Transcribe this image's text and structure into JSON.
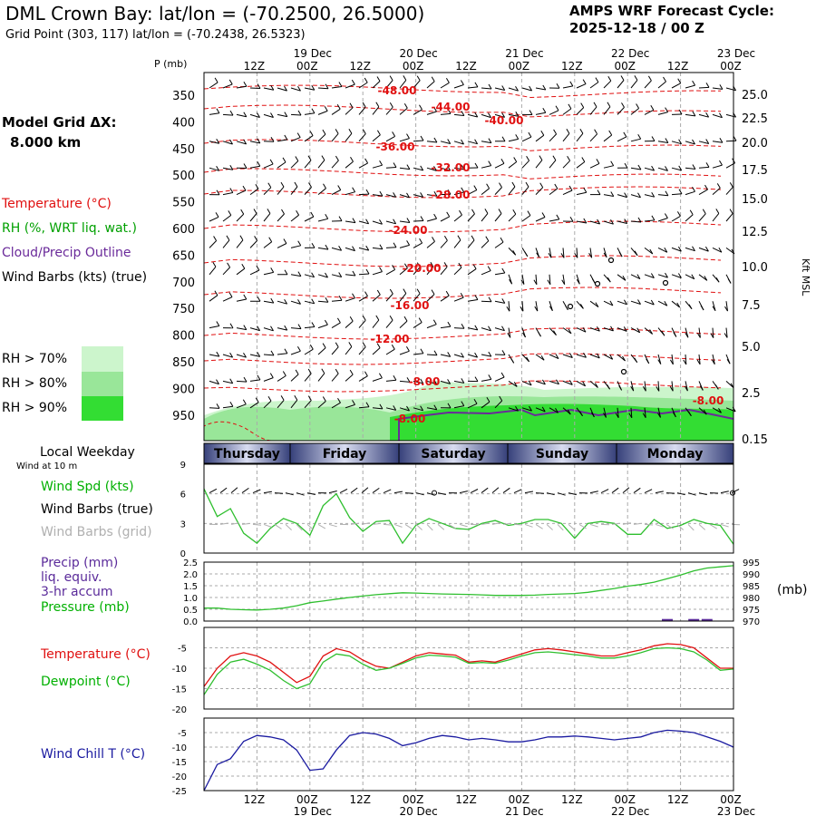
{
  "header": {
    "title": "DML Crown Bay:  lat/lon = (-70.2500, 26.5000)",
    "subtitle": "Grid Point (303, 117) lat/lon = (-70.2438, 26.5323)",
    "cycle_label": "AMPS WRF Forecast Cycle:",
    "cycle_value": "2025-12-18 / 00  Z"
  },
  "left_legend": {
    "model_grid_label": "Model Grid ΔX:",
    "model_grid_value": "8.000 km",
    "temperature": "Temperature (°C)",
    "rh": "RH (%, WRT liq. wat.)",
    "cloud": "Cloud/Precip Outline",
    "wind": "Wind Barbs (kts) (true)",
    "rh70": "RH > 70%",
    "rh80": "RH > 80%",
    "rh90": "RH > 90%",
    "local_weekday": "Local Weekday",
    "wind_at_10m": "Wind at 10 m",
    "wind_spd": "Wind Spd (kts)",
    "wind_barbs_true": "Wind Barbs (true)",
    "wind_barbs_grid": "Wind Barbs (grid)",
    "precip": "Precip (mm)",
    "liq_equiv": "liq. equiv.",
    "accum": "3-hr accum",
    "pressure": "Pressure (mb)",
    "pressure_unit": "(mb)",
    "temp2": "Temperature (°C)",
    "dewpoint": "Dewpoint (°C)",
    "windchill": "Wind Chill T (°C)"
  },
  "colors": {
    "temp": "#e01010",
    "rh": "#00b000",
    "cloud": "#6a2a9a",
    "green70": "#ccf5cc",
    "green80": "#99e699",
    "green90": "#33dd33",
    "windchill": "#1a1aa0",
    "precip": "#5a2a9a",
    "grid": "#aaaaaa",
    "weekday_band": "#36407a"
  },
  "chart_data": [
    {
      "type": "time-height cross-section",
      "time_ticks": [
        "12Z",
        "00Z",
        "12Z",
        "00Z",
        "12Z",
        "00Z",
        "12Z",
        "00Z",
        "12Z",
        "00Z"
      ],
      "date_labels": [
        "19 Dec",
        "20 Dec",
        "21 Dec",
        "22 Dec",
        "23 Dec"
      ],
      "p_axis_title": "P (mb)",
      "pressure_levels": [
        "350",
        "400",
        "450",
        "500",
        "550",
        "600",
        "650",
        "700",
        "750",
        "800",
        "850",
        "900",
        "950"
      ],
      "height_axis_title": "Kft MSL",
      "height_labels": [
        "25.0",
        "22.5",
        "20.0",
        "17.5",
        "15.0",
        "12.5",
        "10.0",
        "7.5",
        "5.0",
        "2.5",
        "0.15"
      ],
      "isotherm_labels": [
        "-48.00",
        "-44.00",
        "-40.00",
        "-36.00",
        "-32.00",
        "-28.00",
        "-24.00",
        "-20.00",
        "-16.00",
        "-12.00",
        "-8.00",
        "-8.00",
        "-8.00"
      ],
      "weekdays": [
        "Thursday",
        "Friday",
        "Saturday",
        "Sunday",
        "Monday"
      ]
    },
    {
      "type": "line",
      "title": "Wind Spd (kts)",
      "y_ticks": [
        "9",
        "6",
        "3",
        "0"
      ],
      "ylim": [
        0,
        9
      ],
      "x_hours": [
        0,
        3,
        6,
        9,
        12,
        15,
        18,
        21,
        24,
        27,
        30,
        33,
        36,
        39,
        42,
        45,
        48,
        51,
        54,
        57,
        60,
        63,
        66,
        69,
        72,
        75,
        78,
        81,
        84,
        87,
        90,
        93,
        96,
        99,
        102,
        105,
        108,
        111,
        114,
        117,
        120
      ],
      "wind_speed_kts": [
        6.5,
        3.7,
        4.5,
        2.0,
        1.0,
        2.5,
        3.5,
        3.0,
        1.8,
        4.8,
        6.0,
        3.6,
        2.2,
        3.2,
        3.3,
        1.0,
        2.8,
        3.5,
        3.0,
        2.5,
        2.4,
        3.0,
        3.3,
        2.8,
        3.0,
        3.4,
        3.4,
        3.0,
        1.5,
        3.0,
        3.2,
        3.0,
        1.9,
        1.9,
        3.4,
        2.5,
        2.8,
        3.4,
        3.0,
        2.8,
        0.9
      ]
    },
    {
      "type": "line",
      "title": "Precip / Pressure",
      "precip_ticks": [
        "2.5",
        "2.0",
        "1.5",
        "1.0",
        "0.5",
        "0.0"
      ],
      "pressure_ticks": [
        "995",
        "990",
        "985",
        "980",
        "975",
        "970"
      ],
      "precip_ylim": [
        0,
        2.5
      ],
      "pressure_ylim": [
        970,
        995
      ],
      "precip_mm": [
        0,
        0,
        0,
        0,
        0,
        0,
        0,
        0,
        0,
        0,
        0,
        0,
        0,
        0,
        0,
        0,
        0,
        0,
        0,
        0,
        0,
        0,
        0,
        0,
        0,
        0,
        0,
        0,
        0,
        0,
        0,
        0,
        0,
        0,
        0,
        0.05,
        0,
        0.05,
        0.05,
        0,
        0
      ],
      "pressure_mb": [
        975.5,
        975.5,
        975.0,
        974.8,
        974.7,
        975.0,
        975.5,
        976.5,
        977.8,
        978.5,
        979.3,
        980.0,
        980.6,
        981.2,
        981.6,
        982.0,
        981.9,
        981.7,
        981.5,
        981.4,
        981.3,
        981.1,
        980.9,
        980.9,
        980.9,
        981.0,
        981.3,
        981.5,
        981.7,
        982.2,
        983.0,
        983.8,
        984.8,
        985.5,
        986.5,
        988.0,
        989.5,
        991.3,
        992.5,
        993.0,
        993.5
      ]
    },
    {
      "type": "line",
      "title": "Temperature / Dewpoint",
      "y_ticks": [
        "-5",
        "-10",
        "-15",
        "-20"
      ],
      "ylim": [
        -20,
        0
      ],
      "temperature_c": [
        -14.5,
        -10.0,
        -7.0,
        -6.2,
        -7.0,
        -8.5,
        -11.0,
        -13.5,
        -12.0,
        -7.0,
        -5.2,
        -6.0,
        -8.0,
        -9.5,
        -10.0,
        -8.5,
        -7.0,
        -6.2,
        -6.5,
        -6.8,
        -8.5,
        -8.2,
        -8.5,
        -7.5,
        -6.5,
        -5.5,
        -5.2,
        -5.5,
        -6.0,
        -6.5,
        -7.0,
        -7.0,
        -6.2,
        -5.5,
        -4.5,
        -4.0,
        -4.2,
        -5.0,
        -7.5,
        -10.0,
        -10.0
      ],
      "dewpoint_c": [
        -16.5,
        -11.5,
        -8.5,
        -7.8,
        -9.0,
        -10.5,
        -13.0,
        -15.0,
        -13.8,
        -8.5,
        -6.5,
        -7.0,
        -9.0,
        -10.5,
        -10.0,
        -8.8,
        -7.5,
        -6.8,
        -7.0,
        -7.3,
        -8.8,
        -8.6,
        -8.8,
        -8.0,
        -7.0,
        -6.2,
        -6.0,
        -6.3,
        -6.7,
        -7.0,
        -7.5,
        -7.5,
        -7.0,
        -6.2,
        -5.2,
        -5.0,
        -5.2,
        -6.0,
        -8.0,
        -10.5,
        -10.2
      ]
    },
    {
      "type": "line",
      "title": "Wind Chill T",
      "y_ticks": [
        "-5",
        "-10",
        "-15",
        "-20",
        "-25"
      ],
      "ylim": [
        -25,
        0
      ],
      "wind_chill_c": [
        -25.0,
        -16.0,
        -14.0,
        -8.0,
        -6.0,
        -6.5,
        -7.5,
        -11.0,
        -18.0,
        -17.5,
        -11.0,
        -6.0,
        -5.0,
        -5.5,
        -7.0,
        -9.5,
        -8.5,
        -7.0,
        -6.0,
        -6.5,
        -7.5,
        -7.0,
        -7.5,
        -8.2,
        -8.2,
        -7.5,
        -6.5,
        -6.5,
        -6.2,
        -6.5,
        -7.0,
        -7.5,
        -7.0,
        -6.5,
        -5.0,
        -4.2,
        -4.5,
        -5.0,
        -6.5,
        -8.0,
        -10.0
      ]
    }
  ]
}
